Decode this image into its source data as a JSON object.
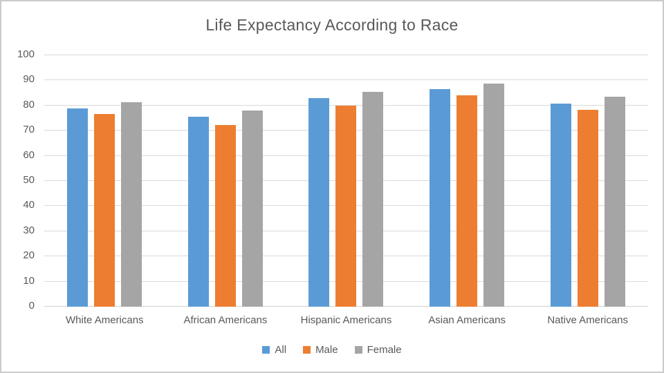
{
  "window": {
    "background": "#ffffff",
    "border_color": "#cbcbcb"
  },
  "chart_data": {
    "type": "bar",
    "title": "Life Expectancy According to Race",
    "categories": [
      "White Americans",
      "African Americans",
      "Hispanic Americans",
      "Asian Americans",
      "Native Americans"
    ],
    "series": [
      {
        "name": "All",
        "color": "#5B9BD5",
        "values": [
          78.8,
          75.5,
          82.9,
          86.5,
          80.7
        ]
      },
      {
        "name": "Male",
        "color": "#ED7D31",
        "values": [
          76.6,
          72.3,
          80.0,
          84.0,
          78.4
        ]
      },
      {
        "name": "Female",
        "color": "#A5A5A5",
        "values": [
          81.3,
          78.1,
          85.4,
          88.8,
          83.4
        ]
      }
    ],
    "xlabel": "",
    "ylabel": "",
    "ylim": [
      0,
      100
    ],
    "yticks": [
      0,
      10,
      20,
      30,
      40,
      50,
      60,
      70,
      80,
      90,
      100
    ],
    "grid": "horizontal",
    "legend_position": "bottom",
    "gridline_color": "#d9d9d9",
    "axis_line_color": "#cfcfcf",
    "text_color": "#595959"
  }
}
